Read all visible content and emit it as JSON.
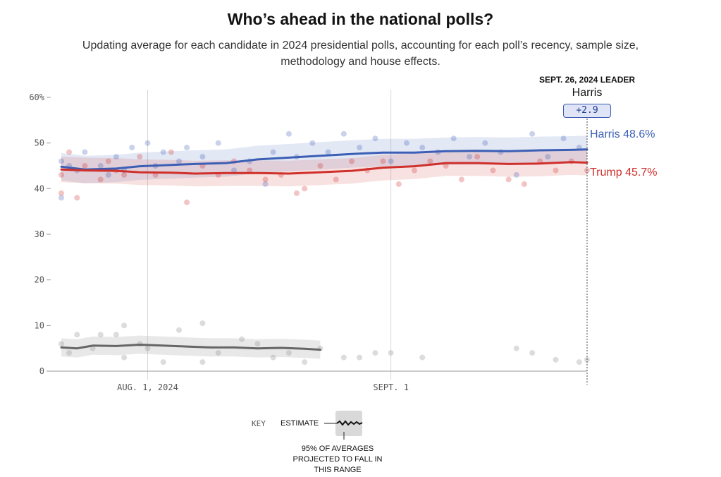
{
  "header": {
    "title": "Who’s ahead in the national polls?",
    "subtitle": "Updating average for each candidate in 2024 presidential polls, accounting for each poll’s recency, sample size, methodology and house effects."
  },
  "leader": {
    "heading": "SEPT. 26, 2024 LEADER",
    "name": "Harris",
    "margin": "+2.9"
  },
  "end_labels": {
    "harris": "Harris 48.6%",
    "trump": "Trump 45.7%"
  },
  "key": {
    "key_label": "KEY",
    "estimate_label": "ESTIMATE",
    "note": "95% OF AVERAGES PROJECTED TO FALL IN THIS RANGE"
  },
  "colors": {
    "harris": "#3c5fb5",
    "trump": "#d0302b",
    "other": "#666666",
    "grid": "#d8d8d8"
  },
  "chart_data": {
    "type": "line",
    "title": "Who’s ahead in the national polls?",
    "x_range": [
      "2024-07-21",
      "2024-09-26"
    ],
    "y_range": [
      0,
      60
    ],
    "x_ticks": [
      {
        "date": "2024-08-01",
        "label": "AUG. 1, 2024"
      },
      {
        "date": "2024-09-01",
        "label": "SEPT. 1"
      }
    ],
    "y_ticks": [
      {
        "value": 60,
        "label": "60%"
      },
      {
        "value": 50,
        "label": "50"
      },
      {
        "value": 40,
        "label": "40"
      },
      {
        "value": 30,
        "label": "30"
      },
      {
        "value": 20,
        "label": "20"
      },
      {
        "value": 10,
        "label": "10"
      },
      {
        "value": 0,
        "label": "0"
      }
    ],
    "grid": "vertical lines at x ticks; horizontal ticks only",
    "series": [
      {
        "name": "Harris",
        "key": "harris",
        "average": [
          [
            "2024-07-21",
            44.8
          ],
          [
            "2024-07-24",
            44.2
          ],
          [
            "2024-07-28",
            44.4
          ],
          [
            "2024-07-31",
            44.9
          ],
          [
            "2024-08-04",
            45.2
          ],
          [
            "2024-08-07",
            45.4
          ],
          [
            "2024-08-11",
            45.6
          ],
          [
            "2024-08-15",
            46.4
          ],
          [
            "2024-08-19",
            46.8
          ],
          [
            "2024-08-23",
            47.2
          ],
          [
            "2024-08-27",
            47.6
          ],
          [
            "2024-08-31",
            47.9
          ],
          [
            "2024-09-04",
            47.9
          ],
          [
            "2024-09-08",
            48.2
          ],
          [
            "2024-09-12",
            48.3
          ],
          [
            "2024-09-16",
            48.2
          ],
          [
            "2024-09-20",
            48.4
          ],
          [
            "2024-09-24",
            48.5
          ],
          [
            "2024-09-26",
            48.6
          ]
        ],
        "polls": [
          [
            "2024-07-21",
            46
          ],
          [
            "2024-07-21",
            38
          ],
          [
            "2024-07-22",
            45
          ],
          [
            "2024-07-23",
            44
          ],
          [
            "2024-07-24",
            48
          ],
          [
            "2024-07-26",
            45
          ],
          [
            "2024-07-27",
            43
          ],
          [
            "2024-07-28",
            47
          ],
          [
            "2024-07-29",
            44
          ],
          [
            "2024-07-30",
            49
          ],
          [
            "2024-08-01",
            50
          ],
          [
            "2024-08-02",
            45
          ],
          [
            "2024-08-03",
            48
          ],
          [
            "2024-08-05",
            46
          ],
          [
            "2024-08-06",
            49
          ],
          [
            "2024-08-08",
            47
          ],
          [
            "2024-08-10",
            50
          ],
          [
            "2024-08-12",
            44
          ],
          [
            "2024-08-14",
            46
          ],
          [
            "2024-08-16",
            41
          ],
          [
            "2024-08-17",
            48
          ],
          [
            "2024-08-19",
            52
          ],
          [
            "2024-08-20",
            47
          ],
          [
            "2024-08-22",
            50
          ],
          [
            "2024-08-24",
            48
          ],
          [
            "2024-08-26",
            52
          ],
          [
            "2024-08-28",
            49
          ],
          [
            "2024-08-30",
            51
          ],
          [
            "2024-09-01",
            46
          ],
          [
            "2024-09-03",
            50
          ],
          [
            "2024-09-05",
            49
          ],
          [
            "2024-09-07",
            48
          ],
          [
            "2024-09-09",
            51
          ],
          [
            "2024-09-11",
            47
          ],
          [
            "2024-09-13",
            50
          ],
          [
            "2024-09-15",
            48
          ],
          [
            "2024-09-17",
            43
          ],
          [
            "2024-09-19",
            52
          ],
          [
            "2024-09-21",
            47
          ],
          [
            "2024-09-23",
            51
          ],
          [
            "2024-09-25",
            49
          ]
        ]
      },
      {
        "name": "Trump",
        "key": "trump",
        "average": [
          [
            "2024-07-21",
            44.2
          ],
          [
            "2024-07-24",
            44.0
          ],
          [
            "2024-07-28",
            43.9
          ],
          [
            "2024-07-31",
            43.6
          ],
          [
            "2024-08-04",
            43.5
          ],
          [
            "2024-08-07",
            43.3
          ],
          [
            "2024-08-11",
            43.4
          ],
          [
            "2024-08-15",
            43.4
          ],
          [
            "2024-08-19",
            43.3
          ],
          [
            "2024-08-23",
            43.6
          ],
          [
            "2024-08-27",
            43.9
          ],
          [
            "2024-08-31",
            44.6
          ],
          [
            "2024-09-04",
            44.9
          ],
          [
            "2024-09-08",
            45.6
          ],
          [
            "2024-09-12",
            45.6
          ],
          [
            "2024-09-16",
            45.4
          ],
          [
            "2024-09-20",
            45.5
          ],
          [
            "2024-09-24",
            45.8
          ],
          [
            "2024-09-26",
            45.7
          ]
        ],
        "polls": [
          [
            "2024-07-21",
            39
          ],
          [
            "2024-07-21",
            43
          ],
          [
            "2024-07-22",
            48
          ],
          [
            "2024-07-23",
            38
          ],
          [
            "2024-07-24",
            45
          ],
          [
            "2024-07-26",
            42
          ],
          [
            "2024-07-27",
            46
          ],
          [
            "2024-07-28",
            44
          ],
          [
            "2024-07-29",
            43
          ],
          [
            "2024-07-31",
            47
          ],
          [
            "2024-08-02",
            43
          ],
          [
            "2024-08-04",
            48
          ],
          [
            "2024-08-06",
            37
          ],
          [
            "2024-08-08",
            45
          ],
          [
            "2024-08-10",
            43
          ],
          [
            "2024-08-12",
            46
          ],
          [
            "2024-08-14",
            44
          ],
          [
            "2024-08-16",
            42
          ],
          [
            "2024-08-18",
            43
          ],
          [
            "2024-08-20",
            39
          ],
          [
            "2024-08-21",
            40
          ],
          [
            "2024-08-23",
            45
          ],
          [
            "2024-08-25",
            42
          ],
          [
            "2024-08-27",
            46
          ],
          [
            "2024-08-29",
            44
          ],
          [
            "2024-08-31",
            46
          ],
          [
            "2024-09-02",
            41
          ],
          [
            "2024-09-04",
            44
          ],
          [
            "2024-09-06",
            46
          ],
          [
            "2024-09-08",
            45
          ],
          [
            "2024-09-10",
            42
          ],
          [
            "2024-09-12",
            47
          ],
          [
            "2024-09-14",
            44
          ],
          [
            "2024-09-16",
            42
          ],
          [
            "2024-09-18",
            41
          ],
          [
            "2024-09-20",
            46
          ],
          [
            "2024-09-22",
            44
          ],
          [
            "2024-09-24",
            46
          ],
          [
            "2024-09-26",
            44
          ]
        ]
      },
      {
        "key": "other",
        "average": [
          [
            "2024-07-21",
            5.2
          ],
          [
            "2024-07-23",
            5.0
          ],
          [
            "2024-07-25",
            5.6
          ],
          [
            "2024-07-28",
            5.5
          ],
          [
            "2024-07-31",
            5.8
          ],
          [
            "2024-08-03",
            5.6
          ],
          [
            "2024-08-06",
            5.4
          ],
          [
            "2024-08-09",
            5.2
          ],
          [
            "2024-08-12",
            5.2
          ],
          [
            "2024-08-15",
            5.0
          ],
          [
            "2024-08-18",
            5.1
          ],
          [
            "2024-08-21",
            4.9
          ],
          [
            "2024-08-23",
            4.7
          ]
        ],
        "polls": [
          [
            "2024-07-21",
            6
          ],
          [
            "2024-07-22",
            4
          ],
          [
            "2024-07-23",
            8
          ],
          [
            "2024-07-25",
            5
          ],
          [
            "2024-07-26",
            8
          ],
          [
            "2024-07-28",
            8
          ],
          [
            "2024-07-29",
            3
          ],
          [
            "2024-07-29",
            10
          ],
          [
            "2024-07-31",
            6
          ],
          [
            "2024-08-01",
            5
          ],
          [
            "2024-08-03",
            2
          ],
          [
            "2024-08-05",
            9
          ],
          [
            "2024-08-08",
            10.5
          ],
          [
            "2024-08-08",
            2
          ],
          [
            "2024-08-10",
            4
          ],
          [
            "2024-08-13",
            7
          ],
          [
            "2024-08-15",
            6
          ],
          [
            "2024-08-17",
            3
          ],
          [
            "2024-08-19",
            4
          ],
          [
            "2024-08-21",
            2
          ],
          [
            "2024-08-23",
            5
          ],
          [
            "2024-08-26",
            3
          ],
          [
            "2024-08-28",
            3
          ],
          [
            "2024-08-30",
            4
          ],
          [
            "2024-09-01",
            4
          ],
          [
            "2024-09-05",
            3
          ],
          [
            "2024-09-17",
            5
          ],
          [
            "2024-09-19",
            4
          ],
          [
            "2024-09-22",
            2.5
          ],
          [
            "2024-09-25",
            2
          ],
          [
            "2024-09-26",
            2.5
          ]
        ]
      }
    ]
  }
}
